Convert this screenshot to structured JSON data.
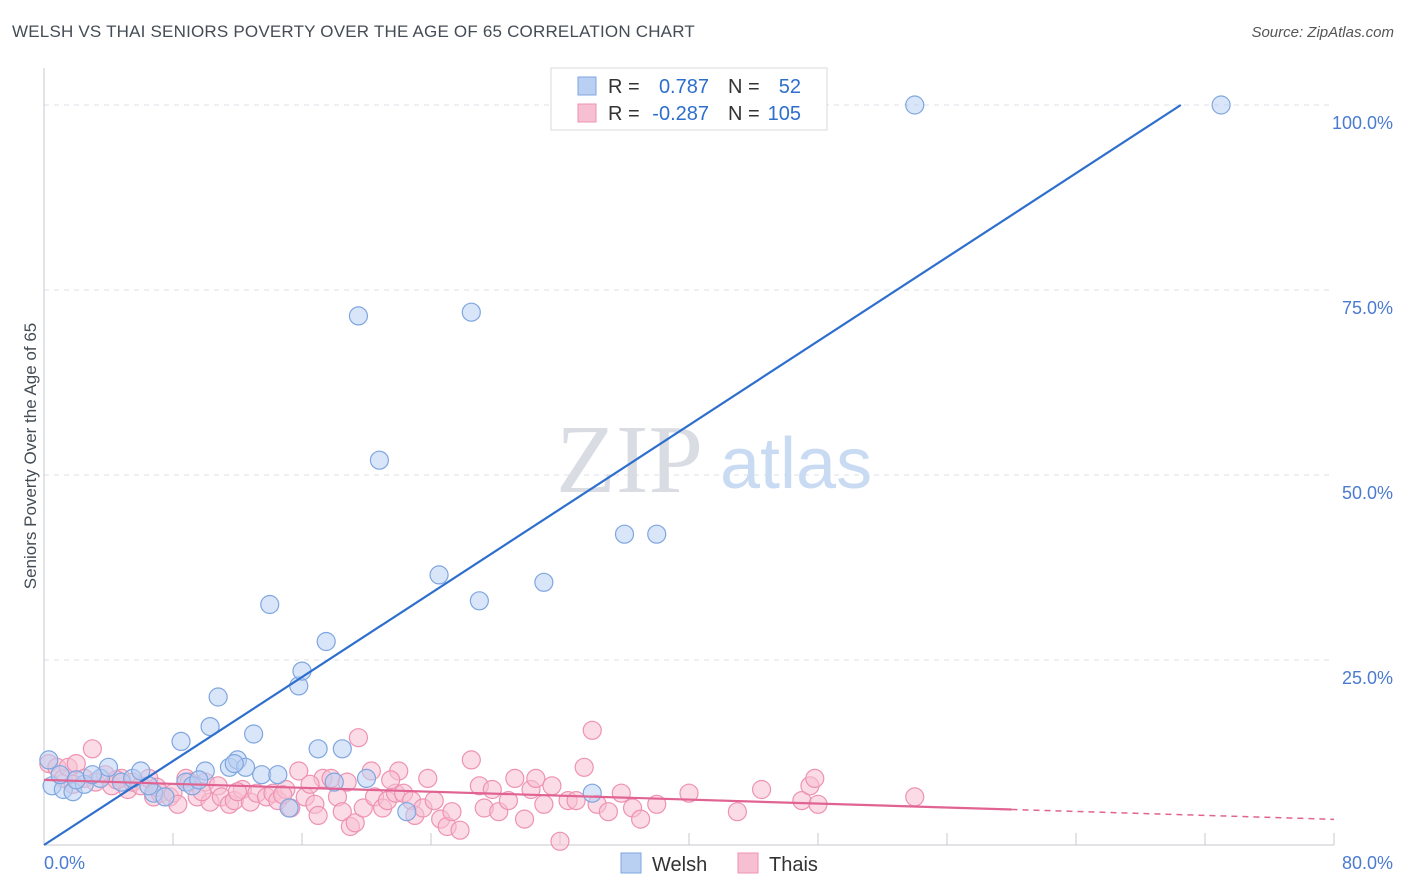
{
  "header": {
    "title": "WELSH VS THAI SENIORS POVERTY OVER THE AGE OF 65 CORRELATION CHART",
    "source": "Source: ZipAtlas.com"
  },
  "watermark": {
    "zip": "ZIP",
    "atlas": "atlas"
  },
  "colors": {
    "welsh_fill": "#b9d0f3",
    "welsh_stroke": "#7fa6e0",
    "welsh_line": "#2e6fce",
    "thais_fill": "#f7c0d2",
    "thais_stroke": "#ee92b2",
    "thais_line": "#e06392",
    "grid": "#dcdfe4",
    "tick_text": "#4a7bd0"
  },
  "stats_legend": {
    "rows": [
      {
        "r_label": "R =",
        "r_value": "0.787",
        "n_label": "N =",
        "n_value": "52"
      },
      {
        "r_label": "R =",
        "r_value": "-0.287",
        "n_label": "N =",
        "n_value": "105"
      }
    ]
  },
  "bottom_legend": {
    "items": [
      "Welsh",
      "Thais"
    ]
  },
  "chart_data": {
    "type": "scatter",
    "xlabel": "",
    "ylabel": "Seniors Poverty Over the Age of 65",
    "xlim": [
      0,
      80
    ],
    "ylim": [
      0,
      105
    ],
    "x_tick_labels": [
      "0.0%",
      "80.0%"
    ],
    "y_ticks": [
      25,
      50,
      75,
      100
    ],
    "y_tick_labels": [
      "25.0%",
      "50.0%",
      "75.0%",
      "100.0%"
    ],
    "grid": true,
    "legend": "bottom-center",
    "series": [
      {
        "name": "Welsh",
        "r": 0.787,
        "n": 52,
        "trend": {
          "x": [
            0,
            70.5
          ],
          "y": [
            0,
            100
          ]
        },
        "points": [
          [
            0.3,
            11.5
          ],
          [
            0.5,
            8.0
          ],
          [
            1.2,
            7.5
          ],
          [
            1.8,
            7.2
          ],
          [
            2.5,
            8.2
          ],
          [
            3.5,
            9.0
          ],
          [
            4.0,
            10.5
          ],
          [
            4.8,
            8.5
          ],
          [
            5.5,
            9.0
          ],
          [
            6.0,
            10.0
          ],
          [
            6.8,
            7.0
          ],
          [
            7.5,
            6.5
          ],
          [
            8.5,
            14.0
          ],
          [
            8.8,
            8.5
          ],
          [
            9.2,
            8.0
          ],
          [
            10.0,
            10.0
          ],
          [
            10.3,
            16.0
          ],
          [
            10.8,
            20.0
          ],
          [
            11.5,
            10.5
          ],
          [
            12.0,
            11.5
          ],
          [
            12.5,
            10.5
          ],
          [
            13.0,
            15.0
          ],
          [
            13.5,
            9.5
          ],
          [
            14.0,
            32.5
          ],
          [
            14.5,
            9.5
          ],
          [
            15.2,
            5.0
          ],
          [
            15.8,
            21.5
          ],
          [
            16.0,
            23.5
          ],
          [
            17.0,
            13.0
          ],
          [
            17.5,
            27.5
          ],
          [
            18.0,
            8.5
          ],
          [
            18.5,
            13.0
          ],
          [
            19.5,
            71.5
          ],
          [
            20.0,
            9.0
          ],
          [
            20.8,
            52.0
          ],
          [
            22.5,
            4.5
          ],
          [
            24.5,
            36.5
          ],
          [
            26.5,
            72.0
          ],
          [
            27.0,
            33.0
          ],
          [
            31.0,
            35.5
          ],
          [
            32.5,
            100.0
          ],
          [
            34.0,
            7.0
          ],
          [
            36.0,
            42.0
          ],
          [
            38.0,
            42.0
          ],
          [
            54.0,
            100.0
          ],
          [
            73.0,
            100.0
          ],
          [
            1.0,
            9.5
          ],
          [
            2.0,
            8.8
          ],
          [
            3.0,
            9.5
          ],
          [
            6.5,
            8.0
          ],
          [
            9.6,
            8.8
          ],
          [
            11.8,
            11.0
          ]
        ]
      },
      {
        "name": "Thais",
        "r": -0.287,
        "n": 105,
        "trend": {
          "x": [
            0,
            60
          ],
          "y": [
            8.8,
            4.8
          ]
        },
        "points": [
          [
            0.3,
            11.0
          ],
          [
            0.8,
            10.5
          ],
          [
            1.2,
            9.0
          ],
          [
            1.5,
            10.5
          ],
          [
            2.0,
            11.0
          ],
          [
            2.5,
            9.0
          ],
          [
            3.0,
            13.0
          ],
          [
            3.2,
            8.5
          ],
          [
            3.8,
            9.5
          ],
          [
            4.2,
            8.0
          ],
          [
            4.8,
            9.0
          ],
          [
            5.2,
            7.5
          ],
          [
            5.5,
            8.5
          ],
          [
            6.0,
            8.0
          ],
          [
            6.5,
            9.0
          ],
          [
            6.8,
            6.5
          ],
          [
            7.2,
            7.0
          ],
          [
            7.8,
            6.5
          ],
          [
            8.0,
            7.0
          ],
          [
            8.3,
            5.5
          ],
          [
            8.8,
            9.0
          ],
          [
            9.0,
            8.5
          ],
          [
            9.5,
            6.5
          ],
          [
            10.0,
            8.5
          ],
          [
            10.3,
            5.8
          ],
          [
            10.8,
            8.0
          ],
          [
            11.0,
            6.5
          ],
          [
            11.5,
            5.5
          ],
          [
            11.8,
            6.0
          ],
          [
            12.3,
            7.5
          ],
          [
            12.8,
            5.8
          ],
          [
            13.2,
            7.0
          ],
          [
            13.8,
            6.5
          ],
          [
            14.2,
            7.0
          ],
          [
            14.5,
            6.0
          ],
          [
            15.0,
            7.5
          ],
          [
            15.3,
            5.0
          ],
          [
            15.8,
            10.0
          ],
          [
            16.2,
            6.5
          ],
          [
            16.8,
            5.5
          ],
          [
            17.0,
            4.0
          ],
          [
            17.3,
            9.0
          ],
          [
            17.8,
            9.0
          ],
          [
            18.2,
            6.5
          ],
          [
            18.5,
            4.5
          ],
          [
            19.0,
            2.5
          ],
          [
            19.3,
            3.0
          ],
          [
            19.5,
            14.5
          ],
          [
            19.8,
            5.0
          ],
          [
            20.3,
            10.0
          ],
          [
            20.5,
            6.5
          ],
          [
            21.0,
            5.0
          ],
          [
            21.3,
            6.0
          ],
          [
            21.8,
            7.0
          ],
          [
            22.0,
            10.0
          ],
          [
            22.3,
            7.0
          ],
          [
            22.8,
            6.0
          ],
          [
            23.0,
            4.0
          ],
          [
            23.5,
            5.0
          ],
          [
            23.8,
            9.0
          ],
          [
            24.2,
            6.0
          ],
          [
            24.6,
            3.5
          ],
          [
            25.0,
            2.5
          ],
          [
            25.3,
            4.5
          ],
          [
            25.8,
            2.0
          ],
          [
            26.5,
            11.5
          ],
          [
            27.0,
            8.0
          ],
          [
            27.3,
            5.0
          ],
          [
            27.8,
            7.5
          ],
          [
            28.2,
            4.5
          ],
          [
            28.8,
            6.0
          ],
          [
            29.2,
            9.0
          ],
          [
            29.8,
            3.5
          ],
          [
            30.2,
            7.5
          ],
          [
            30.5,
            9.0
          ],
          [
            31.0,
            5.5
          ],
          [
            31.5,
            8.0
          ],
          [
            32.0,
            0.5
          ],
          [
            32.5,
            6.0
          ],
          [
            33.0,
            6.0
          ],
          [
            33.5,
            10.5
          ],
          [
            34.0,
            15.5
          ],
          [
            34.3,
            5.5
          ],
          [
            35.0,
            4.5
          ],
          [
            35.8,
            7.0
          ],
          [
            36.5,
            5.0
          ],
          [
            37.0,
            3.5
          ],
          [
            38.0,
            5.5
          ],
          [
            40.0,
            7.0
          ],
          [
            43.0,
            4.5
          ],
          [
            44.5,
            7.5
          ],
          [
            47.0,
            6.0
          ],
          [
            47.5,
            8.0
          ],
          [
            47.8,
            9.0
          ],
          [
            48.0,
            5.5
          ],
          [
            54.0,
            6.5
          ],
          [
            1.8,
            8.2
          ],
          [
            4.5,
            8.8
          ],
          [
            7.0,
            7.8
          ],
          [
            9.8,
            7.2
          ],
          [
            12.0,
            7.2
          ],
          [
            14.8,
            6.8
          ],
          [
            16.5,
            8.2
          ],
          [
            18.8,
            8.5
          ],
          [
            21.5,
            8.8
          ]
        ]
      }
    ]
  }
}
